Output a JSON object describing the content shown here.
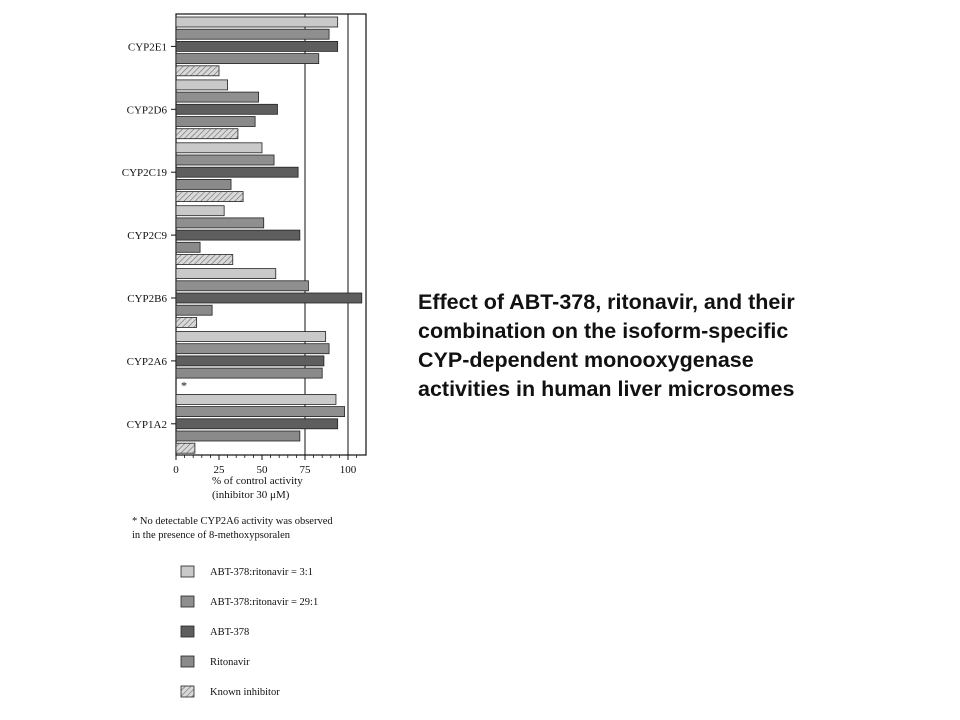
{
  "chart_data": {
    "type": "bar",
    "orientation": "horizontal",
    "categories": [
      "CYP2E1",
      "CYP2D6",
      "CYP2C19",
      "CYP2C9",
      "CYP2B6",
      "CYP2A6",
      "CYP1A2"
    ],
    "series": [
      {
        "name": "ABT-378:ritonavir = 3:1",
        "values": [
          94,
          30,
          50,
          28,
          58,
          87,
          93
        ]
      },
      {
        "name": "ABT-378:ritonavir = 29:1",
        "values": [
          89,
          48,
          57,
          51,
          77,
          89,
          98
        ]
      },
      {
        "name": "ABT-378",
        "values": [
          94,
          59,
          71,
          72,
          108,
          86,
          94
        ]
      },
      {
        "name": "Ritonavir",
        "values": [
          83,
          46,
          32,
          14,
          21,
          85,
          72
        ]
      },
      {
        "name": "Known inhibitor",
        "values": [
          25,
          36,
          39,
          33,
          12,
          null,
          11
        ]
      }
    ],
    "series_colors": [
      "#c9c9c9",
      "#8f8f8f",
      "#5e5e5e",
      "#8a8a8a",
      "#bdbdbd"
    ],
    "xlim": [
      0,
      110
    ],
    "xticks": [
      "0",
      "25",
      "50",
      "75",
      "100"
    ],
    "xlabel": [
      "% of control activity",
      "(inhibitor 30 μM)"
    ],
    "missing_marker": "*",
    "footnote": [
      "* No detectable CYP2A6 activity was observed",
      "in the presence of 8-methoxypsoralen"
    ],
    "legend_position": "bottom"
  },
  "caption": {
    "lines": [
      "Effect of ABT-378, ritonavir, and their",
      "combination on the isoform-specific",
      "CYP-dependent monooxygenase",
      "activities in human liver microsomes"
    ]
  }
}
